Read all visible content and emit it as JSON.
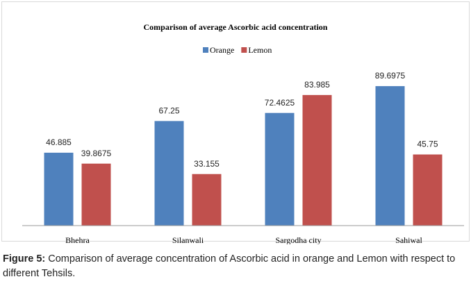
{
  "chart_data": {
    "type": "bar",
    "title": "Comparison of average Ascorbic acid concentration",
    "categories": [
      "Bhehra",
      "Silanwali",
      "Sargodha city",
      "Sahiwal"
    ],
    "series": [
      {
        "name": "Orange",
        "color": "#4f81bd",
        "values": [
          46.885,
          67.25,
          72.4625,
          89.6975
        ]
      },
      {
        "name": "Lemon",
        "color": "#c0504d",
        "values": [
          39.8675,
          33.155,
          83.985,
          45.75
        ]
      }
    ],
    "ylim": [
      0,
      100
    ],
    "legend": "top"
  },
  "caption": {
    "label": "Figure 5:",
    "text": "Comparison of average concentration of Ascorbic acid in orange and Lemon with respect to different Tehsils."
  }
}
